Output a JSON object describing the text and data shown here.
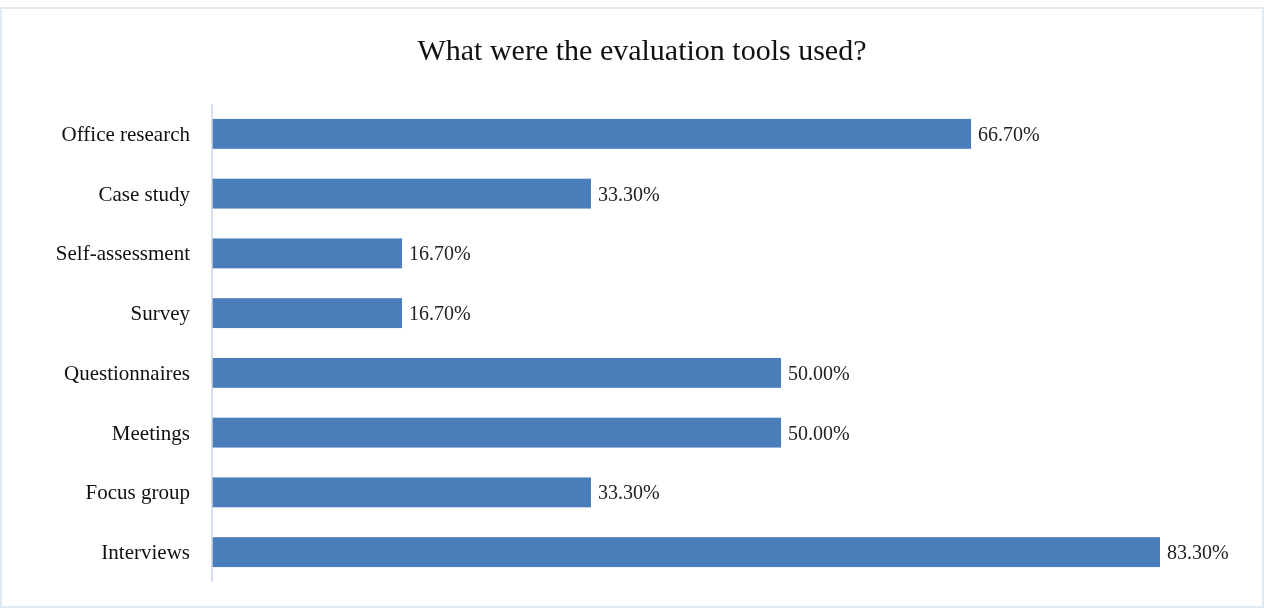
{
  "chart_data": {
    "type": "bar",
    "orientation": "horizontal",
    "title": "What were the evaluation tools used?",
    "categories": [
      "Office research",
      "Case study",
      "Self-assessment",
      "Survey",
      "Questionnaires",
      "Meetings",
      "Focus group",
      "Interviews"
    ],
    "values": [
      66.7,
      33.3,
      16.7,
      16.7,
      50,
      50,
      33.3,
      83.3
    ],
    "value_labels": [
      "66.70%",
      "33.30%",
      "16.70%",
      "16.70%",
      "50.00%",
      "50.00%",
      "33.30%",
      "83.30%"
    ],
    "color": "#4a7ebb"
  }
}
